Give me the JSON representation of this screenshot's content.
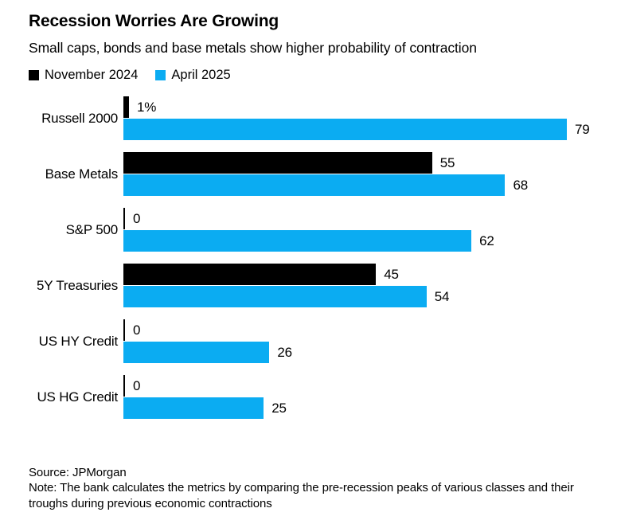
{
  "header": {
    "title": "Recession Worries Are Growing",
    "subtitle": "Small caps, bonds and base metals show higher probability of contraction"
  },
  "legend": [
    {
      "label": "November 2024",
      "color": "#000000"
    },
    {
      "label": "April 2025",
      "color": "#0BACF2"
    }
  ],
  "chart_data": {
    "type": "bar",
    "orientation": "horizontal",
    "title": "Recession Worries Are Growing",
    "subtitle": "Small caps, bonds and base metals show higher probability of contraction",
    "categories": [
      "Russell 2000",
      "Base Metals",
      "S&P 500",
      "5Y Treasuries",
      "US HY Credit",
      "US HG Credit"
    ],
    "series": [
      {
        "name": "November 2024",
        "color": "#000000",
        "values": [
          1,
          55,
          0,
          45,
          0,
          0
        ],
        "value_labels": [
          "1%",
          "55",
          "0",
          "45",
          "0",
          "0"
        ]
      },
      {
        "name": "April 2025",
        "color": "#0BACF2",
        "values": [
          79,
          68,
          62,
          54,
          26,
          25
        ],
        "value_labels": [
          "79",
          "68",
          "62",
          "54",
          "26",
          "25"
        ]
      }
    ],
    "xlim": [
      0,
      79
    ],
    "axis_ticks_visible": false,
    "grid": false,
    "legend_position": "top"
  },
  "footer": {
    "source": "Source: JPMorgan",
    "note": "Note: The bank calculates the metrics by comparing the pre-recession peaks of various classes and their troughs during previous economic contractions"
  }
}
